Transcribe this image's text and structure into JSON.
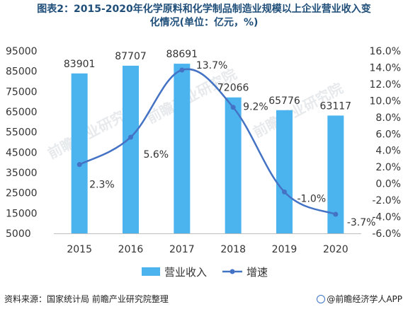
{
  "title_line1": "图表2：2015-2020年化学原料和化学制品制造业规模以上企业营业收入变",
  "title_line2": "化情况(单位：亿元，%)",
  "source": "资料来源：国家统计局 前瞻产业研究院整理",
  "brand": "@前瞻经济学人APP",
  "watermark": "前瞻产业研究院",
  "colors": {
    "bar": "#4bb4ee",
    "line": "#4472c4",
    "title": "#1f4e79"
  },
  "chart_data": {
    "type": "bar+line",
    "categories": [
      "2015",
      "2016",
      "2017",
      "2018",
      "2019",
      "2020"
    ],
    "series": [
      {
        "name": "营业收入",
        "type": "bar",
        "axis": "left",
        "values": [
          83901,
          87707,
          88691,
          72066,
          65776,
          63117
        ],
        "labels": [
          "83901",
          "87707",
          "88691",
          "72066",
          "65776",
          "63117"
        ]
      },
      {
        "name": "增速",
        "type": "line",
        "axis": "right",
        "values": [
          2.3,
          5.6,
          13.7,
          9.2,
          -1.0,
          -3.7
        ],
        "labels": [
          "2.3%",
          "5.6%",
          "13.7%",
          "9.2%",
          "-1.0%",
          "-3.7%"
        ]
      }
    ],
    "left_axis": {
      "ylim": [
        5000,
        95000
      ],
      "ticks": [
        "95000",
        "85000",
        "75000",
        "65000",
        "55000",
        "45000",
        "35000",
        "25000",
        "15000",
        "5000"
      ]
    },
    "right_axis": {
      "ylim": [
        -6,
        16
      ],
      "ticks": [
        "16.0%",
        "14.0%",
        "12.0%",
        "10.0%",
        "8.0%",
        "6.0%",
        "4.0%",
        "2.0%",
        "0.0%",
        "-2.0%",
        "-4.0%",
        "-6.0%"
      ]
    },
    "legend": [
      "营业收入",
      "增速"
    ],
    "legend_position": "bottom",
    "grid": false
  }
}
